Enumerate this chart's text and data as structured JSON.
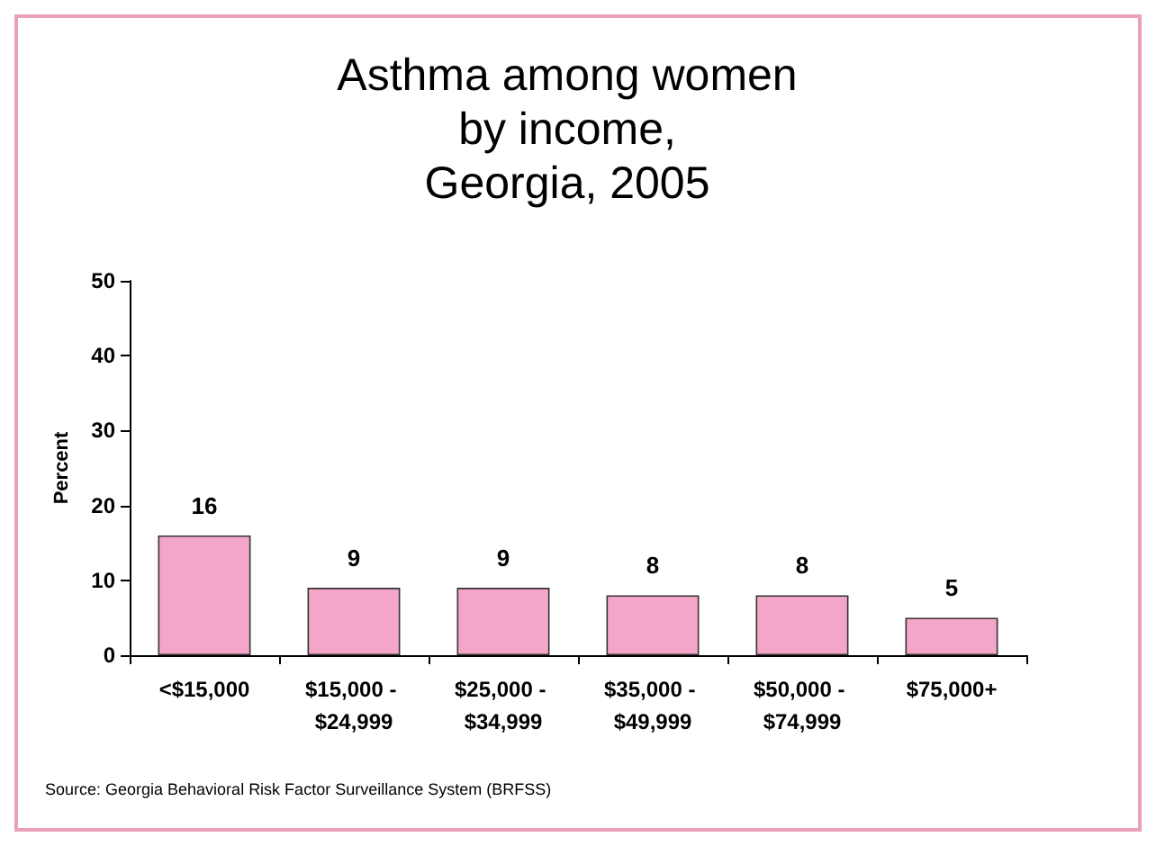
{
  "chart_data": {
    "type": "bar",
    "title": "Asthma among women\nby income,\nGeorgia, 2005",
    "ylabel": "Percent",
    "categories": [
      "<$15,000",
      "$15,000 - $24,999",
      "$25,000 - $34,999",
      "$35,000 - $49,999",
      "$50,000 - $74,999",
      "$75,000+"
    ],
    "values": [
      16,
      9,
      9,
      8,
      8,
      5
    ],
    "color": "#f4a6c8",
    "ylim": [
      0,
      50
    ],
    "yticks": [
      0,
      10,
      20,
      30,
      40,
      50
    ],
    "grid": false,
    "data_labels": true,
    "annotations": [
      "Source: Georgia Behavioral Risk Factor Surveillance System (BRFSS)"
    ]
  }
}
